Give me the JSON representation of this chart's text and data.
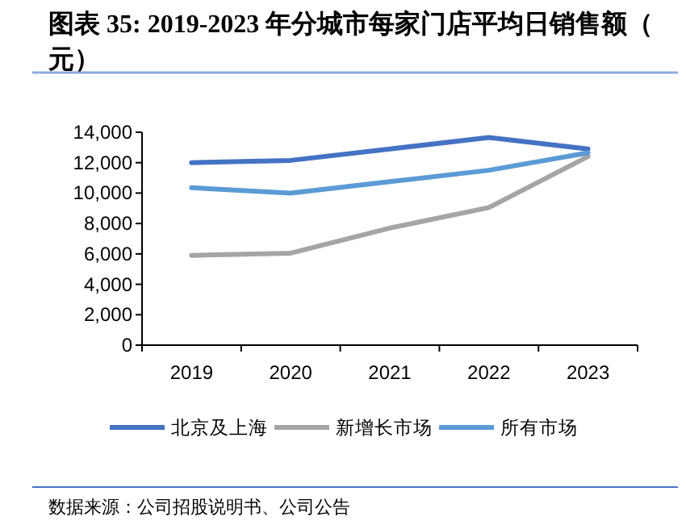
{
  "chart_data": {
    "type": "line",
    "title": "图表 35:  2019-2023 年分城市每家门店平均日销售额（元）",
    "categories": [
      "2019",
      "2020",
      "2021",
      "2022",
      "2023"
    ],
    "series": [
      {
        "name": "北京及上海",
        "color": "#4472c4",
        "values": [
          12000,
          12150,
          12900,
          13650,
          12900
        ]
      },
      {
        "name": "新增长市场",
        "color": "#a5a5a5",
        "values": [
          5900,
          6050,
          7700,
          9050,
          12400
        ]
      },
      {
        "name": "所有市场",
        "color": "#5b9bd5",
        "values": [
          10350,
          10000,
          10750,
          11500,
          12650
        ]
      }
    ],
    "ylim": [
      0,
      14000
    ],
    "yticks": [
      {
        "value": 0,
        "label": "0"
      },
      {
        "value": 2000,
        "label": "2,000"
      },
      {
        "value": 4000,
        "label": "4,000"
      },
      {
        "value": 6000,
        "label": "6,000"
      },
      {
        "value": 8000,
        "label": "8,000"
      },
      {
        "value": 10000,
        "label": "10,000"
      },
      {
        "value": 12000,
        "label": "12,000"
      },
      {
        "value": 14000,
        "label": "14,000"
      }
    ],
    "grid": false,
    "legend": "bottom",
    "marker": "none",
    "line_style": "solid",
    "annotations": [
      "数据来源：公司招股说明书、公司公告"
    ]
  }
}
